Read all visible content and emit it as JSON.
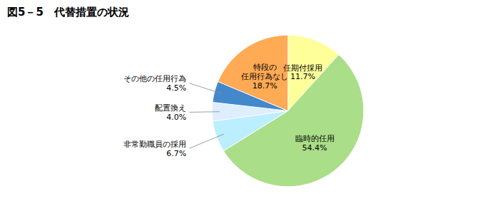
{
  "chart_data": {
    "type": "pie",
    "title": "図5－5　代替措置の状況",
    "categories": [
      "任期付採用\n11.7%",
      "臨時的任用\n54.4%",
      "非常勤職員の採用\n6.7%",
      "配置換え\n4.0%",
      "その他の任用行為\n4.5%",
      "特段の\n任用行為なし\n18.7%"
    ],
    "values": [
      11.7,
      54.4,
      6.7,
      4.0,
      4.5,
      18.7
    ],
    "colors": [
      "#FFFF99",
      "#AADE88",
      "#BBEEFF",
      "#DDEEFF",
      "#4488CC",
      "#FFAA55"
    ]
  }
}
